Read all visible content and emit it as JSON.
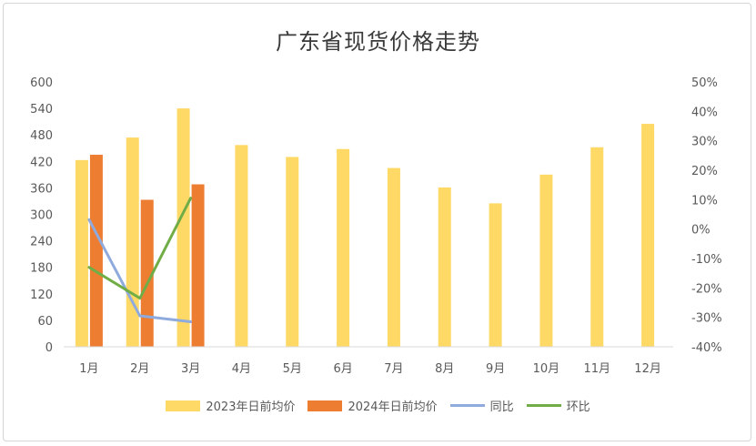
{
  "chart_data": {
    "type": "bar",
    "title": "广东省现货价格走势",
    "categories": [
      "1月",
      "2月",
      "3月",
      "4月",
      "5月",
      "6月",
      "7月",
      "8月",
      "9月",
      "10月",
      "11月",
      "12月"
    ],
    "y_left": {
      "min": 0,
      "max": 600,
      "ticks": [
        0,
        60,
        120,
        180,
        240,
        300,
        360,
        420,
        480,
        540,
        600
      ],
      "tick_labels": [
        "0",
        "60",
        "120",
        "180",
        "240",
        "300",
        "360",
        "420",
        "480",
        "540",
        "600"
      ]
    },
    "y_right": {
      "min": -40,
      "max": 50,
      "ticks": [
        -40,
        -30,
        -20,
        -10,
        0,
        10,
        20,
        30,
        40,
        50
      ],
      "tick_labels": [
        "-40%",
        "-30%",
        "-20%",
        "-10%",
        "0%",
        "10%",
        "20%",
        "30%",
        "40%",
        "50%"
      ]
    },
    "series": [
      {
        "name": "2023年日前均价",
        "type": "bar",
        "axis": "left",
        "color": "#FFD966",
        "values": [
          423,
          474,
          540,
          457,
          430,
          448,
          405,
          361,
          325,
          390,
          452,
          505
        ]
      },
      {
        "name": "2024年日前均价",
        "type": "bar",
        "axis": "left",
        "color": "#ED7D31",
        "values": [
          435,
          333,
          368,
          null,
          null,
          null,
          null,
          null,
          null,
          null,
          null,
          null
        ]
      },
      {
        "name": "同比",
        "type": "line",
        "axis": "right",
        "color": "#8FAADC",
        "values": [
          3.2,
          -29.5,
          -31.5,
          null,
          null,
          null,
          null,
          null,
          null,
          null,
          null,
          null
        ]
      },
      {
        "name": "环比",
        "type": "line",
        "axis": "right",
        "color": "#70AD47",
        "values": [
          -13,
          -23.5,
          10.5,
          null,
          null,
          null,
          null,
          null,
          null,
          null,
          null,
          null
        ]
      }
    ],
    "legend_position": "bottom",
    "grid": false
  }
}
